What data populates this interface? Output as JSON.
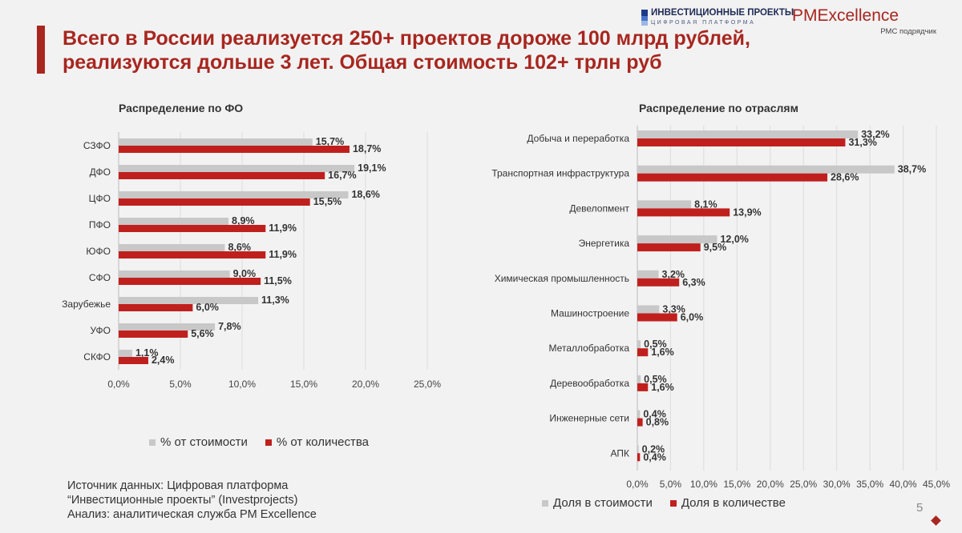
{
  "header": {
    "title_line1": "Всего в России реализуется 250+ проектов дороже 100 млрд рублей,",
    "title_line2": "реализуются дольше 3 лет. Общая стоимость 102+ трлн руб"
  },
  "logos": {
    "invest_title": "ИНВЕСТИЦИОННЫЕ ПРОЕКТЫ",
    "invest_sub": "ЦИФРОВАЯ ПЛАТФОРМА",
    "pm_name": "PMExcellence",
    "pm_sub": "PMC подрядчик"
  },
  "colors": {
    "accent": "#a8261f",
    "gray_bar": "#c8c8c8",
    "red_bar": "#c0201d"
  },
  "chart_data": [
    {
      "type": "bar",
      "orientation": "horizontal",
      "title": "Распределение по ФО",
      "categories": [
        "СЗФО",
        "ДФО",
        "ЦФО",
        "ПФО",
        "ЮФО",
        "СФО",
        "Зарубежье",
        "УФО",
        "СКФО"
      ],
      "series": [
        {
          "name": "% от стоимости",
          "values": [
            15.7,
            19.1,
            18.6,
            8.9,
            8.6,
            9.0,
            11.3,
            7.8,
            1.1
          ],
          "labels": [
            "15,7%",
            "19,1%",
            "18,6%",
            "8,9%",
            "8,6%",
            "9,0%",
            "11,3%",
            "7,8%",
            "1,1%"
          ]
        },
        {
          "name": "% от количества",
          "values": [
            18.7,
            16.7,
            15.5,
            11.9,
            11.9,
            11.5,
            6.0,
            5.6,
            2.4
          ],
          "labels": [
            "18,7%",
            "16,7%",
            "15,5%",
            "11,9%",
            "11,9%",
            "11,5%",
            "6,0%",
            "5,6%",
            "2,4%"
          ]
        }
      ],
      "xlim": [
        0,
        25
      ],
      "ticks": [
        0,
        5,
        10,
        15,
        20,
        25
      ],
      "tick_labels": [
        "0,0%",
        "5,0%",
        "10,0%",
        "15,0%",
        "20,0%",
        "25,0%"
      ],
      "legend": "bottom"
    },
    {
      "type": "bar",
      "orientation": "horizontal",
      "title": "Распределение по отраслям",
      "categories": [
        "Добыча и переработка",
        "Транспортная инфраструктура",
        "Девелопмент",
        "Энергетика",
        "Химическая промышленность",
        "Машиностроение",
        "Металлобработка",
        "Деревообработка",
        "Инженерные сети",
        "АПК"
      ],
      "series": [
        {
          "name": "Доля в стоимости",
          "values": [
            33.2,
            38.7,
            8.1,
            12.0,
            3.2,
            3.3,
            0.5,
            0.5,
            0.4,
            0.2
          ],
          "labels": [
            "33,2%",
            "38,7%",
            "8,1%",
            "12,0%",
            "3,2%",
            "3,3%",
            "0,5%",
            "0,5%",
            "0,4%",
            "0,2%"
          ]
        },
        {
          "name": "Доля в количестве",
          "values": [
            31.3,
            28.6,
            13.9,
            9.5,
            6.3,
            6.0,
            1.6,
            1.6,
            0.8,
            0.4
          ],
          "labels": [
            "31,3%",
            "28,6%",
            "13,9%",
            "9,5%",
            "6,3%",
            "6,0%",
            "1,6%",
            "1,6%",
            "0,8%",
            "0,4%"
          ]
        }
      ],
      "xlim": [
        0,
        45
      ],
      "ticks": [
        0,
        5,
        10,
        15,
        20,
        25,
        30,
        35,
        40,
        45
      ],
      "tick_labels": [
        "0,0%",
        "5,0%",
        "10,0%",
        "15,0%",
        "20,0%",
        "25,0%",
        "30,0%",
        "35,0%",
        "40,0%",
        "45,0%"
      ],
      "legend": "bottom"
    }
  ],
  "source": {
    "line1": "Источник данных: Цифровая платформа",
    "line2": "“Инвестиционные проекты” (Investprojects)",
    "line3": "Анализ: аналитическая служба PM Excellence"
  },
  "page_number": "5"
}
